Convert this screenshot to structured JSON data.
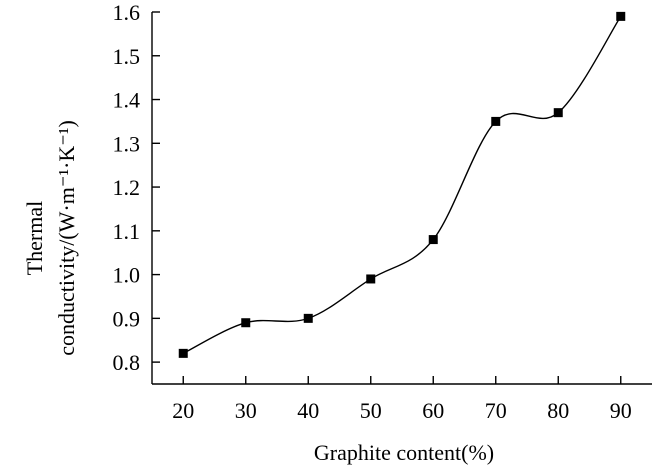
{
  "chart_data": {
    "type": "line",
    "xlabel": "Graphite content(%)",
    "ylabel_line1": "Thermal",
    "ylabel_line2": "conductivity/(W·m⁻¹·K⁻¹)",
    "x": [
      20,
      30,
      40,
      50,
      60,
      70,
      80,
      90
    ],
    "series": [
      {
        "values": [
          0.82,
          0.89,
          0.9,
          0.99,
          1.08,
          1.35,
          1.37,
          1.59
        ]
      }
    ],
    "xlim": [
      15,
      95
    ],
    "ylim": [
      0.75,
      1.6
    ],
    "xticks": [
      "20",
      "30",
      "40",
      "50",
      "60",
      "70",
      "80",
      "90"
    ],
    "yticks": [
      "0.8",
      "0.9",
      "1.0",
      "1.1",
      "1.2",
      "1.3",
      "1.4",
      "1.5",
      "1.6"
    ],
    "grid": false,
    "legend": "none",
    "marker": "square",
    "line_style": "smooth",
    "color": "#000000"
  }
}
